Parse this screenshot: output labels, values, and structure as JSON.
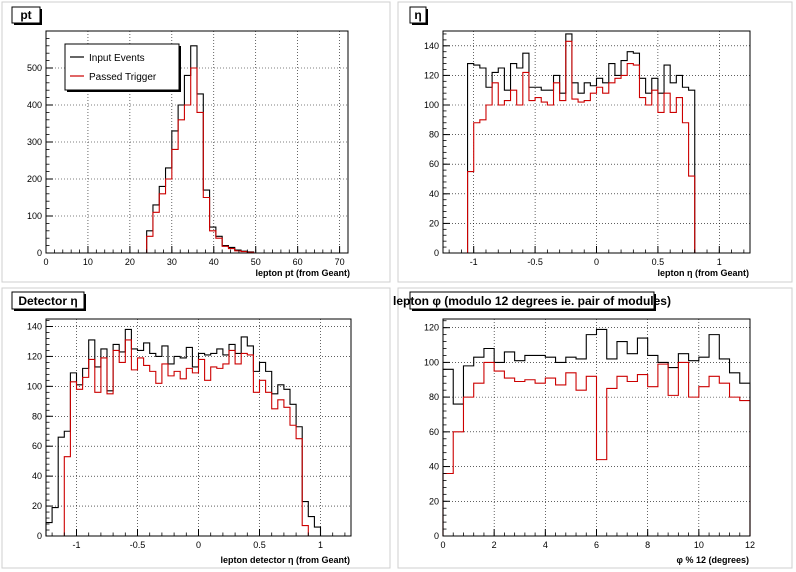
{
  "chart_data": [
    {
      "type": "histogram",
      "title": "pt",
      "xlabel": "lepton pt (from Geant)",
      "ylabel": "",
      "xlim": [
        0,
        72
      ],
      "ylim": [
        0,
        600
      ],
      "xticks": [
        0,
        10,
        20,
        30,
        40,
        50,
        60,
        70
      ],
      "yticks": [
        0,
        100,
        200,
        300,
        400,
        500
      ],
      "grid": true,
      "legend": {
        "position": "top-left",
        "entries": [
          "Input Events",
          "Passed Trigger"
        ]
      },
      "bin_edges": [
        0,
        1.5,
        3,
        4.5,
        6,
        7.5,
        9,
        10.5,
        12,
        13.5,
        15,
        16.5,
        18,
        19.5,
        21,
        22.5,
        24,
        25.5,
        27,
        28.5,
        30,
        31.5,
        33,
        34.5,
        36,
        37.5,
        39,
        40.5,
        42,
        43.5,
        45,
        46.5,
        48,
        49.5,
        51,
        52.5,
        54,
        55.5,
        57,
        58.5,
        60,
        61.5,
        63,
        64.5,
        66,
        67.5,
        69,
        70.5,
        72
      ],
      "series": [
        {
          "name": "Input Events",
          "color": "#000000",
          "values": [
            0,
            0,
            0,
            0,
            0,
            0,
            0,
            0,
            0,
            0,
            0,
            0,
            0,
            0,
            0,
            0,
            60,
            130,
            180,
            230,
            330,
            400,
            480,
            560,
            430,
            170,
            70,
            45,
            20,
            15,
            8,
            5,
            3,
            0,
            0,
            0,
            0,
            0,
            0,
            0,
            0,
            0,
            0,
            0,
            0,
            0,
            0,
            0
          ]
        },
        {
          "name": "Passed Trigger",
          "color": "#cc0000",
          "values": [
            0,
            0,
            0,
            0,
            0,
            0,
            0,
            0,
            0,
            0,
            0,
            0,
            0,
            0,
            0,
            0,
            45,
            110,
            160,
            200,
            280,
            360,
            400,
            500,
            380,
            150,
            60,
            40,
            18,
            12,
            6,
            4,
            2,
            0,
            0,
            0,
            0,
            0,
            0,
            0,
            0,
            0,
            0,
            0,
            0,
            0,
            0,
            0
          ]
        }
      ]
    },
    {
      "type": "histogram",
      "title": "η",
      "xlabel": "lepton η (from Geant)",
      "ylabel": "",
      "xlim": [
        -1.25,
        1.25
      ],
      "ylim": [
        0,
        150
      ],
      "xticks": [
        -1,
        -0.5,
        0,
        0.5,
        1
      ],
      "yticks": [
        0,
        20,
        40,
        60,
        80,
        100,
        120,
        140
      ],
      "grid": true,
      "bin_edges": [
        -1.25,
        -1.15,
        -1.05,
        -1,
        -0.95,
        -0.9,
        -0.85,
        -0.8,
        -0.75,
        -0.7,
        -0.65,
        -0.6,
        -0.55,
        -0.5,
        -0.45,
        -0.4,
        -0.35,
        -0.3,
        -0.25,
        -0.2,
        -0.15,
        -0.1,
        -0.05,
        0,
        0.05,
        0.1,
        0.15,
        0.2,
        0.25,
        0.3,
        0.35,
        0.4,
        0.45,
        0.5,
        0.55,
        0.6,
        0.65,
        0.7,
        0.75,
        0.8,
        0.85,
        0.9,
        0.95,
        1,
        1.05,
        1.15,
        1.25
      ],
      "series": [
        {
          "name": "Input Events",
          "color": "#000000",
          "values": [
            0,
            0,
            128,
            127,
            125,
            112,
            122,
            125,
            110,
            128,
            125,
            135,
            112,
            112,
            110,
            110,
            120,
            108,
            148,
            115,
            108,
            115,
            113,
            118,
            115,
            128,
            120,
            130,
            136,
            135,
            118,
            108,
            118,
            108,
            127,
            115,
            120,
            112,
            110,
            0,
            0,
            0,
            0,
            0,
            0,
            0
          ]
        },
        {
          "name": "Passed Trigger",
          "color": "#cc0000",
          "values": [
            0,
            0,
            55,
            88,
            90,
            100,
            115,
            100,
            103,
            110,
            100,
            122,
            103,
            105,
            102,
            100,
            115,
            103,
            143,
            104,
            102,
            103,
            108,
            112,
            108,
            115,
            118,
            120,
            128,
            127,
            105,
            100,
            110,
            95,
            108,
            95,
            105,
            88,
            52,
            0,
            0,
            0,
            0,
            0,
            0,
            0
          ]
        }
      ]
    },
    {
      "type": "histogram",
      "title": "Detector η",
      "xlabel": "lepton detector η (from Geant)",
      "ylabel": "",
      "xlim": [
        -1.25,
        1.25
      ],
      "ylim": [
        0,
        145
      ],
      "xticks": [
        -1,
        -0.5,
        0,
        0.5,
        1
      ],
      "yticks": [
        0,
        20,
        40,
        60,
        80,
        100,
        120,
        140
      ],
      "grid": true,
      "bin_edges": [
        -1.25,
        -1.2,
        -1.15,
        -1.1,
        -1.05,
        -1,
        -0.95,
        -0.9,
        -0.85,
        -0.8,
        -0.75,
        -0.7,
        -0.65,
        -0.6,
        -0.55,
        -0.5,
        -0.45,
        -0.4,
        -0.35,
        -0.3,
        -0.25,
        -0.2,
        -0.15,
        -0.1,
        -0.05,
        0,
        0.05,
        0.1,
        0.15,
        0.2,
        0.25,
        0.3,
        0.35,
        0.4,
        0.45,
        0.5,
        0.55,
        0.6,
        0.65,
        0.7,
        0.75,
        0.8,
        0.85,
        0.9,
        0.95,
        1,
        1.05,
        1.1,
        1.15,
        1.2,
        1.25
      ],
      "series": [
        {
          "name": "Input Events",
          "color": "#000000",
          "values": [
            9,
            19,
            66,
            70,
            109,
            101,
            112,
            131,
            113,
            125,
            97,
            128,
            123,
            138,
            125,
            124,
            129,
            122,
            120,
            127,
            115,
            120,
            119,
            126,
            113,
            122,
            121,
            122,
            125,
            121,
            128,
            122,
            133,
            127,
            110,
            116,
            110,
            95,
            101,
            98,
            88,
            73,
            23,
            13,
            6,
            0,
            0,
            0,
            0,
            0
          ]
        },
        {
          "name": "Passed Trigger",
          "color": "#cc0000",
          "values": [
            0,
            0,
            0,
            53,
            103,
            98,
            106,
            118,
            96,
            119,
            95,
            124,
            116,
            131,
            111,
            119,
            114,
            110,
            102,
            115,
            107,
            110,
            105,
            112,
            109,
            118,
            104,
            113,
            112,
            115,
            124,
            115,
            122,
            121,
            96,
            104,
            96,
            85,
            91,
            86,
            74,
            65,
            7,
            0,
            0,
            0,
            0,
            0,
            0,
            0
          ]
        }
      ]
    },
    {
      "type": "histogram",
      "title": "lepton φ (modulo 12 degrees ie. pair of modules)",
      "xlabel": "φ % 12 (degrees)",
      "ylabel": "",
      "xlim": [
        0,
        12
      ],
      "ylim": [
        0,
        125
      ],
      "xticks": [
        0,
        2,
        4,
        6,
        8,
        10,
        12
      ],
      "yticks": [
        0,
        20,
        40,
        60,
        80,
        100,
        120
      ],
      "grid": true,
      "bin_edges": [
        0,
        0.4,
        0.8,
        1.2,
        1.6,
        2,
        2.4,
        2.8,
        3.2,
        3.6,
        4,
        4.4,
        4.8,
        5.2,
        5.6,
        6,
        6.4,
        6.8,
        7.2,
        7.6,
        8,
        8.4,
        8.8,
        9.2,
        9.6,
        10,
        10.4,
        10.8,
        11.2,
        11.6,
        12
      ],
      "series": [
        {
          "name": "Input Events",
          "color": "#000000",
          "values": [
            96,
            76,
            98,
            103,
            108,
            100,
            106,
            101,
            104,
            104,
            103,
            100,
            103,
            102,
            116,
            119,
            102,
            112,
            105,
            114,
            104,
            100,
            97,
            105,
            101,
            103,
            116,
            102,
            94,
            88
          ]
        },
        {
          "name": "Passed Trigger",
          "color": "#cc0000",
          "values": [
            36,
            60,
            80,
            88,
            100,
            95,
            91,
            89,
            90,
            88,
            91,
            87,
            94,
            84,
            92,
            44,
            85,
            92,
            89,
            93,
            86,
            99,
            81,
            100,
            80,
            86,
            92,
            88,
            80,
            78
          ]
        }
      ]
    }
  ]
}
